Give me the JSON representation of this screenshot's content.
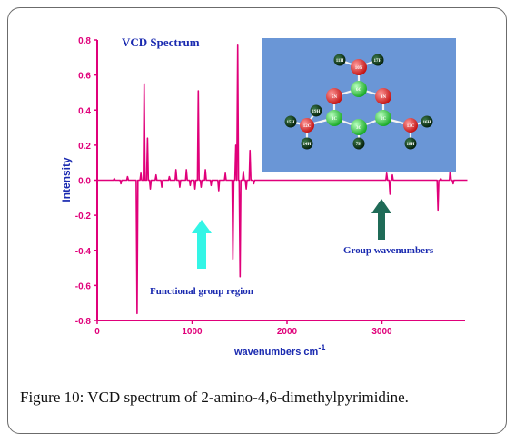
{
  "chart_data": {
    "type": "line",
    "title": "VCD Spectrum",
    "xlabel": "wavenumbers cm",
    "xlabel_superscript": "-1",
    "ylabel": "Intensity",
    "xlim": [
      0,
      3900
    ],
    "ylim": [
      -0.8,
      0.8
    ],
    "x_ticks": [
      0,
      1000,
      2000,
      3000
    ],
    "y_ticks": [
      0.8,
      0.6,
      0.4,
      0.2,
      0.0,
      -0.2,
      -0.4,
      -0.6,
      -0.8
    ],
    "y_tick_labels": [
      "0.8",
      "0.6",
      "0.4",
      "0.2",
      "0.0",
      "-0.2",
      "-0.4",
      "-0.6",
      "-0.8"
    ],
    "line_color": "#e0007a",
    "peaks": [
      {
        "x": 180,
        "y": 0.01
      },
      {
        "x": 250,
        "y": -0.02
      },
      {
        "x": 320,
        "y": 0.02
      },
      {
        "x": 420,
        "y": -0.76
      },
      {
        "x": 460,
        "y": 0.04
      },
      {
        "x": 495,
        "y": 0.55
      },
      {
        "x": 530,
        "y": 0.24
      },
      {
        "x": 560,
        "y": -0.05
      },
      {
        "x": 620,
        "y": 0.03
      },
      {
        "x": 680,
        "y": -0.04
      },
      {
        "x": 760,
        "y": 0.02
      },
      {
        "x": 830,
        "y": 0.06
      },
      {
        "x": 870,
        "y": -0.04
      },
      {
        "x": 940,
        "y": 0.06
      },
      {
        "x": 980,
        "y": -0.03
      },
      {
        "x": 1030,
        "y": -0.05
      },
      {
        "x": 1065,
        "y": 0.51
      },
      {
        "x": 1095,
        "y": -0.04
      },
      {
        "x": 1140,
        "y": 0.06
      },
      {
        "x": 1200,
        "y": -0.03
      },
      {
        "x": 1280,
        "y": -0.06
      },
      {
        "x": 1350,
        "y": 0.04
      },
      {
        "x": 1430,
        "y": -0.45
      },
      {
        "x": 1460,
        "y": 0.2
      },
      {
        "x": 1480,
        "y": 0.77
      },
      {
        "x": 1505,
        "y": -0.55
      },
      {
        "x": 1540,
        "y": 0.05
      },
      {
        "x": 1570,
        "y": -0.05
      },
      {
        "x": 1610,
        "y": 0.17
      },
      {
        "x": 1650,
        "y": -0.02
      },
      {
        "x": 3050,
        "y": 0.04
      },
      {
        "x": 3085,
        "y": -0.08
      },
      {
        "x": 3110,
        "y": 0.03
      },
      {
        "x": 3590,
        "y": -0.17
      },
      {
        "x": 3620,
        "y": 0.01
      },
      {
        "x": 3720,
        "y": 0.07
      },
      {
        "x": 3750,
        "y": -0.02
      }
    ],
    "annotations": {
      "functional_group": "Functional group region",
      "group_wavenumbers": "Group wavenumbers",
      "arrow_functional_color": "#33f5e6",
      "arrow_group_color": "#1f6b57",
      "arrow_inset_color": "#ffffff"
    },
    "inset": {
      "background": "#6a96d6",
      "ring_atoms": [
        {
          "label": "6C",
          "color": "#22cc33"
        },
        {
          "label": "5N",
          "color": "#e32222"
        },
        {
          "label": "4N",
          "color": "#e32222"
        },
        {
          "label": "1C",
          "color": "#22cc33"
        },
        {
          "label": "2C",
          "color": "#22cc33"
        },
        {
          "label": "3C",
          "color": "#22cc33"
        }
      ],
      "amino": {
        "label": "10N",
        "color": "#cc1111"
      },
      "methyl_left": {
        "label": "12C",
        "color": "#e32222"
      },
      "methyl_right": {
        "label": "13C",
        "color": "#e32222"
      },
      "hydrogens": [
        "11H",
        "17H",
        "7H",
        "15H",
        "14H",
        "16H",
        "18H",
        "19H"
      ],
      "hydrogen_color": "#063d14"
    }
  },
  "caption": {
    "label": "Figure 10:",
    "text": " VCD spectrum of 2-amino-4,6-dimethylpyrimidine."
  }
}
